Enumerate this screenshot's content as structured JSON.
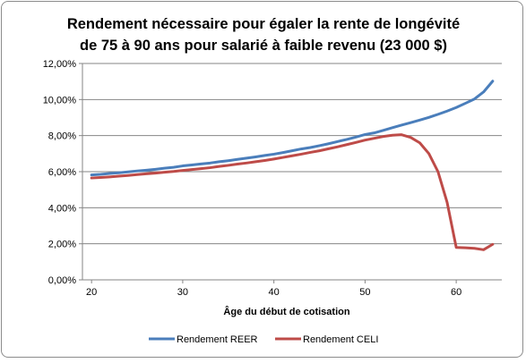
{
  "chart_data": {
    "type": "line",
    "title_line1": "Rendement nécessaire pour égaler la rente de longévité",
    "title_line2": "de 75 à 90 ans pour salarié à faible revenu (23 000 $)",
    "xlabel": "Âge du début de cotisation",
    "ylabel": "",
    "xlim": [
      19,
      65
    ],
    "ylim": [
      0,
      0.12
    ],
    "x_ticks": [
      20,
      30,
      40,
      50,
      60
    ],
    "y_ticks": [
      0,
      0.02,
      0.04,
      0.06,
      0.08,
      0.1,
      0.12
    ],
    "y_tick_labels": [
      "0,00%",
      "2,00%",
      "4,00%",
      "6,00%",
      "8,00%",
      "10,00%",
      "12,00%"
    ],
    "grid": "horizontal",
    "legend_position": "bottom",
    "x": [
      20,
      21,
      22,
      23,
      24,
      25,
      26,
      27,
      28,
      29,
      30,
      31,
      32,
      33,
      34,
      35,
      36,
      37,
      38,
      39,
      40,
      41,
      42,
      43,
      44,
      45,
      46,
      47,
      48,
      49,
      50,
      51,
      52,
      53,
      54,
      55,
      56,
      57,
      58,
      59,
      60,
      61,
      62,
      63,
      64
    ],
    "series": [
      {
        "name": "Rendement REER",
        "color": "#4a7ebb",
        "values": [
          0.0582,
          0.0585,
          0.059,
          0.0594,
          0.0599,
          0.0604,
          0.0608,
          0.0613,
          0.0619,
          0.0624,
          0.0632,
          0.0637,
          0.0643,
          0.0648,
          0.0655,
          0.0661,
          0.0668,
          0.0675,
          0.0682,
          0.069,
          0.0697,
          0.0706,
          0.0716,
          0.0726,
          0.0734,
          0.0744,
          0.0755,
          0.0767,
          0.0779,
          0.0792,
          0.0806,
          0.0815,
          0.0829,
          0.0844,
          0.0858,
          0.0872,
          0.0886,
          0.0901,
          0.0918,
          0.0936,
          0.0956,
          0.0979,
          0.1003,
          0.1042,
          0.1102
        ]
      },
      {
        "name": "Rendement CELI",
        "color": "#be4b48",
        "values": [
          0.0565,
          0.0568,
          0.0571,
          0.0575,
          0.0579,
          0.0584,
          0.0588,
          0.0592,
          0.0597,
          0.0601,
          0.0607,
          0.0612,
          0.0617,
          0.0622,
          0.0629,
          0.0635,
          0.0642,
          0.0648,
          0.0655,
          0.0662,
          0.067,
          0.0679,
          0.0688,
          0.0697,
          0.0707,
          0.0716,
          0.0727,
          0.0738,
          0.075,
          0.0762,
          0.0775,
          0.0785,
          0.0795,
          0.0802,
          0.0805,
          0.079,
          0.076,
          0.07,
          0.06,
          0.043,
          0.018,
          0.0178,
          0.0175,
          0.0167,
          0.0197
        ]
      }
    ]
  }
}
